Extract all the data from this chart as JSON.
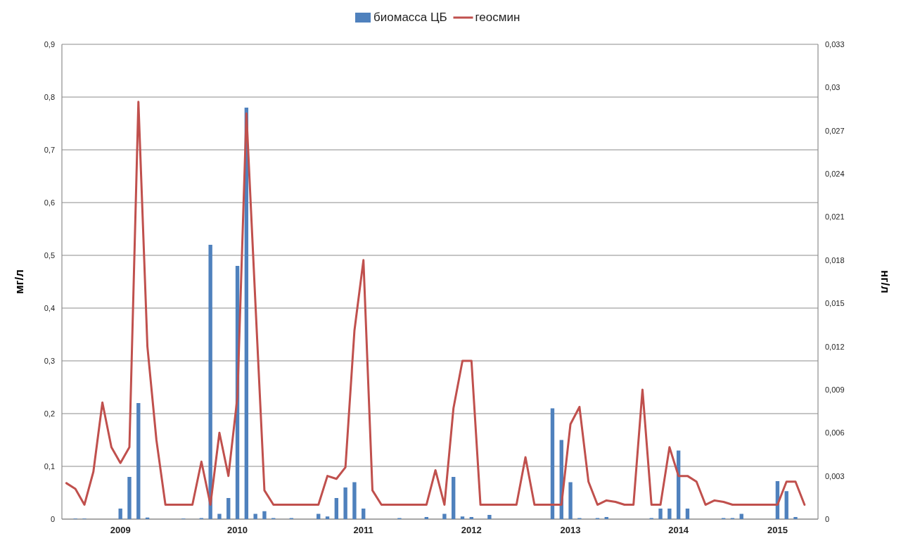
{
  "chart_data": {
    "type": "bar",
    "ylabel": "мг/л",
    "y2label": "нг/л",
    "legend": "top",
    "grid": "y",
    "categories": [
      null,
      null,
      null,
      null,
      null,
      null,
      "2009",
      null,
      null,
      null,
      null,
      null,
      null,
      null,
      null,
      null,
      null,
      null,
      null,
      "2010",
      null,
      null,
      null,
      null,
      null,
      null,
      null,
      null,
      null,
      null,
      null,
      null,
      null,
      "2011",
      null,
      null,
      null,
      null,
      null,
      null,
      null,
      null,
      null,
      null,
      null,
      "2012",
      null,
      null,
      null,
      null,
      null,
      null,
      null,
      null,
      null,
      null,
      "2013",
      null,
      null,
      null,
      null,
      null,
      null,
      null,
      null,
      null,
      null,
      null,
      "2014",
      null,
      null,
      null,
      null,
      null,
      null,
      null,
      null,
      null,
      null,
      "2015",
      null,
      null,
      null,
      null
    ],
    "series": [
      {
        "name": "биомасса ЦБ",
        "color": "#4f81bd",
        "values": [
          0,
          0.001,
          0.001,
          0,
          0,
          0,
          0.02,
          0.08,
          0.22,
          0.003,
          0,
          0,
          0,
          0.001,
          0,
          0.002,
          0.52,
          0.01,
          0.04,
          0.48,
          0.78,
          0.01,
          0.015,
          0.002,
          0,
          0.002,
          0,
          0,
          0.01,
          0.005,
          0.04,
          0.06,
          0.07,
          0.02,
          0,
          0,
          0,
          0.002,
          0,
          0,
          0.004,
          0,
          0.01,
          0.08,
          0.005,
          0.004,
          0,
          0.008,
          0,
          0,
          0,
          0,
          0,
          0,
          0.21,
          0.15,
          0.07,
          0.002,
          0,
          0.002,
          0.004,
          0,
          0,
          0,
          0,
          0.002,
          0.02,
          0.02,
          0.13,
          0.02,
          0,
          0,
          0,
          0.002,
          0.002,
          0.01,
          0,
          0,
          0,
          0.072,
          0.053,
          0.004,
          0,
          0
        ]
      },
      {
        "name": "геосмин",
        "type": "line",
        "axis": "y2",
        "color": "#c0504d",
        "values": [
          0.0025,
          0.0021,
          0.001,
          0.0033,
          0.0081,
          0.005,
          0.0039,
          0.005,
          0.029,
          0.012,
          0.0055,
          0.001,
          0.001,
          0.001,
          0.001,
          0.004,
          0.001,
          0.006,
          0.003,
          0.0085,
          0.0282,
          0.015,
          0.002,
          0.001,
          0.001,
          0.001,
          0.001,
          0.001,
          0.001,
          0.003,
          0.0028,
          0.0036,
          0.0131,
          0.018,
          0.002,
          0.001,
          0.001,
          0.001,
          0.001,
          0.001,
          0.001,
          0.0034,
          0.001,
          0.0077,
          0.011,
          0.011,
          0.001,
          0.001,
          0.001,
          0.001,
          0.001,
          0.0043,
          0.001,
          0.001,
          0.001,
          0.001,
          0.0066,
          0.0078,
          0.0026,
          0.001,
          0.0013,
          0.0012,
          0.001,
          0.001,
          0.009,
          0.001,
          0.001,
          0.005,
          0.003,
          0.003,
          0.0026,
          0.001,
          0.0013,
          0.0012,
          0.001,
          0.001,
          0.001,
          0.001,
          0.001,
          0.001,
          0.0026,
          0.0026,
          0.001,
          null
        ]
      }
    ],
    "ylim": [
      0,
      0.9
    ],
    "yticks": [
      0,
      {
        "value": 0.1,
        "label": "0,1"
      },
      {
        "value": 0.2,
        "label": "0,2"
      },
      {
        "value": 0.3,
        "label": "0,3"
      },
      {
        "value": 0.4,
        "label": "0,4"
      },
      {
        "value": 0.5,
        "label": "0,5"
      },
      {
        "value": 0.6,
        "label": "0,6"
      },
      {
        "value": 0.7,
        "label": "0,7"
      },
      {
        "value": 0.8,
        "label": "0,8"
      },
      {
        "value": 0.9,
        "label": "0,9"
      }
    ],
    "y2lim": [
      0,
      0.033
    ],
    "y2ticks": [
      0,
      {
        "value": 0.003,
        "label": "0,003"
      },
      {
        "value": 0.006,
        "label": "0,006"
      },
      {
        "value": 0.009,
        "label": "0,009"
      },
      {
        "value": 0.012,
        "label": "0,012"
      },
      {
        "value": 0.015,
        "label": "0,015"
      },
      {
        "value": 0.018,
        "label": "0,018"
      },
      {
        "value": 0.021,
        "label": "0,021"
      },
      {
        "value": 0.024,
        "label": "0,024"
      },
      {
        "value": 0.027,
        "label": "0,027"
      },
      {
        "value": 0.03,
        "label": "0,03"
      },
      {
        "value": 0.033,
        "label": "0,033"
      }
    ]
  }
}
